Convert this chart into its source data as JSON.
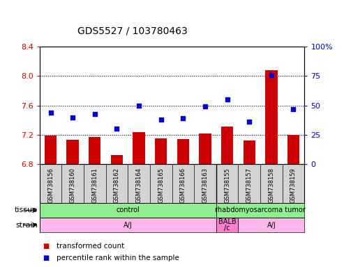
{
  "title": "GDS5527 / 103780463",
  "samples": [
    "GSM738156",
    "GSM738160",
    "GSM738161",
    "GSM738162",
    "GSM738164",
    "GSM738165",
    "GSM738166",
    "GSM738163",
    "GSM738155",
    "GSM738157",
    "GSM738158",
    "GSM738159"
  ],
  "bar_values": [
    7.19,
    7.13,
    7.17,
    6.92,
    7.24,
    7.15,
    7.14,
    7.22,
    7.31,
    7.12,
    8.08,
    7.2
  ],
  "scatter_values": [
    44,
    40,
    43,
    30,
    50,
    38,
    39,
    49,
    55,
    36,
    76,
    47
  ],
  "ylim_left": [
    6.8,
    8.4
  ],
  "ylim_right": [
    0,
    100
  ],
  "yticks_left": [
    6.8,
    7.2,
    7.6,
    8.0,
    8.4
  ],
  "yticks_right": [
    0,
    25,
    50,
    75,
    100
  ],
  "bar_color": "#cc0000",
  "scatter_color": "#0000cc",
  "bar_bottom": 6.8,
  "tissue_rects": [
    {
      "label": "control",
      "start": 0,
      "end": 8,
      "color": "#90EE90"
    },
    {
      "label": "rhabdomyosarcoma tumor",
      "start": 8,
      "end": 12,
      "color": "#90EE90"
    }
  ],
  "strain_rects": [
    {
      "label": "A/J",
      "start": 0,
      "end": 8,
      "color": "#FFB6E8"
    },
    {
      "label": "BALB\n/c",
      "start": 8,
      "end": 9,
      "color": "#FF80CC"
    },
    {
      "label": "A/J",
      "start": 9,
      "end": 12,
      "color": "#FFB6E8"
    }
  ],
  "tissue_row_label": "tissue",
  "strain_row_label": "strain",
  "legend_items": [
    {
      "label": "transformed count",
      "color": "#cc0000"
    },
    {
      "label": "percentile rank within the sample",
      "color": "#0000cc"
    }
  ],
  "left_tick_color": "#cc0000",
  "right_tick_color": "#0000cc",
  "title_fontsize": 10,
  "tick_fontsize": 8,
  "sample_fontsize": 6,
  "annot_fontsize": 8,
  "legend_fontsize": 7.5
}
